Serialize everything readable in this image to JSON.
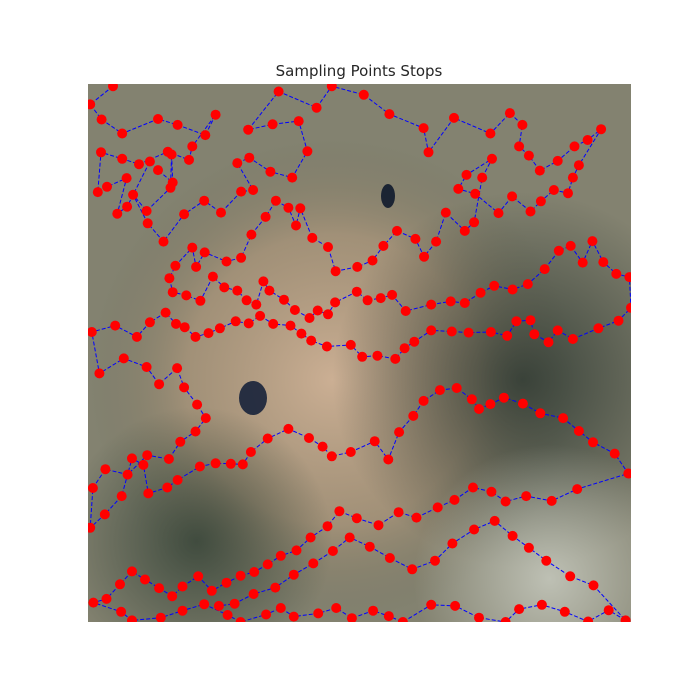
{
  "chart_data": {
    "type": "scatter",
    "title": "Sampling Points Stops",
    "xlabel": "",
    "ylabel": "",
    "axes_visible": false,
    "background": "aerial photograph (satellite imagery of terrain)",
    "xlim": [
      0,
      100
    ],
    "ylim": [
      0,
      100
    ],
    "y_inverted": true,
    "grid": false,
    "legend": "none",
    "colors": {
      "point": "#ff0000",
      "path": "#0000ff",
      "title": "#262626"
    },
    "path_style": "dashed",
    "points": [
      [
        4.6,
        0.4
      ],
      [
        0.4,
        3.8
      ],
      [
        2.5,
        6.6
      ],
      [
        6.3,
        9.2
      ],
      [
        12.9,
        6.5
      ],
      [
        16.5,
        7.6
      ],
      [
        21.6,
        9.5
      ],
      [
        23.5,
        5.7
      ],
      [
        19.2,
        11.6
      ],
      [
        18.6,
        14.1
      ],
      [
        14.7,
        12.6
      ],
      [
        9.4,
        14.9
      ],
      [
        6.3,
        13.9
      ],
      [
        2.4,
        12.7
      ],
      [
        1.8,
        20.1
      ],
      [
        3.5,
        19.1
      ],
      [
        7.1,
        17.5
      ],
      [
        5.4,
        24.1
      ],
      [
        7.2,
        22.8
      ],
      [
        11.4,
        14.4
      ],
      [
        12.9,
        16.0
      ],
      [
        15.6,
        18.3
      ],
      [
        15.4,
        13.1
      ],
      [
        15.2,
        19.3
      ],
      [
        10.8,
        23.6
      ],
      [
        8.3,
        20.6
      ],
      [
        11.0,
        25.9
      ],
      [
        13.9,
        29.3
      ],
      [
        17.7,
        24.2
      ],
      [
        21.4,
        21.7
      ],
      [
        24.5,
        23.9
      ],
      [
        28.2,
        20.0
      ],
      [
        30.4,
        19.7
      ],
      [
        27.5,
        14.7
      ],
      [
        29.7,
        13.7
      ],
      [
        33.6,
        16.3
      ],
      [
        37.6,
        17.4
      ],
      [
        40.4,
        12.5
      ],
      [
        38.8,
        6.9
      ],
      [
        34.0,
        7.5
      ],
      [
        29.5,
        8.5
      ],
      [
        35.1,
        1.4
      ],
      [
        42.1,
        4.4
      ],
      [
        44.9,
        0.4
      ],
      [
        50.8,
        2.0
      ],
      [
        55.5,
        5.6
      ],
      [
        61.8,
        8.2
      ],
      [
        62.7,
        12.7
      ],
      [
        67.4,
        6.3
      ],
      [
        74.1,
        9.2
      ],
      [
        77.7,
        5.4
      ],
      [
        80.0,
        7.6
      ],
      [
        79.4,
        11.6
      ],
      [
        81.2,
        13.3
      ],
      [
        83.2,
        16.1
      ],
      [
        86.5,
        14.3
      ],
      [
        89.6,
        11.6
      ],
      [
        92.0,
        10.4
      ],
      [
        94.5,
        8.4
      ],
      [
        90.4,
        15.1
      ],
      [
        89.3,
        17.4
      ],
      [
        88.4,
        20.3
      ],
      [
        85.8,
        19.7
      ],
      [
        83.4,
        21.8
      ],
      [
        81.5,
        23.7
      ],
      [
        78.1,
        20.9
      ],
      [
        75.6,
        24.0
      ],
      [
        71.3,
        20.4
      ],
      [
        68.2,
        19.5
      ],
      [
        69.7,
        16.9
      ],
      [
        74.4,
        13.9
      ],
      [
        72.6,
        17.4
      ],
      [
        71.1,
        25.7
      ],
      [
        69.4,
        27.3
      ],
      [
        65.9,
        23.9
      ],
      [
        64.1,
        29.3
      ],
      [
        61.9,
        32.1
      ],
      [
        60.3,
        28.8
      ],
      [
        56.9,
        27.3
      ],
      [
        54.4,
        30.1
      ],
      [
        52.4,
        32.8
      ],
      [
        49.6,
        34.0
      ],
      [
        45.6,
        34.8
      ],
      [
        44.2,
        30.3
      ],
      [
        41.3,
        28.6
      ],
      [
        39.1,
        23.1
      ],
      [
        38.3,
        26.3
      ],
      [
        36.9,
        23.0
      ],
      [
        34.6,
        21.7
      ],
      [
        32.7,
        24.7
      ],
      [
        30.1,
        28.0
      ],
      [
        28.2,
        32.3
      ],
      [
        25.5,
        33.0
      ],
      [
        21.5,
        31.3
      ],
      [
        19.9,
        34.0
      ],
      [
        19.2,
        30.4
      ],
      [
        16.1,
        33.8
      ],
      [
        15.0,
        36.1
      ],
      [
        15.6,
        38.7
      ],
      [
        18.1,
        39.3
      ],
      [
        20.7,
        40.3
      ],
      [
        23.0,
        35.8
      ],
      [
        25.1,
        37.8
      ],
      [
        27.5,
        38.4
      ],
      [
        29.2,
        40.2
      ],
      [
        31.0,
        41.0
      ],
      [
        32.3,
        36.7
      ],
      [
        33.4,
        38.4
      ],
      [
        36.1,
        40.1
      ],
      [
        38.1,
        42.0
      ],
      [
        40.8,
        43.5
      ],
      [
        42.3,
        42.1
      ],
      [
        44.2,
        42.8
      ],
      [
        45.5,
        40.6
      ],
      [
        49.5,
        38.6
      ],
      [
        51.5,
        40.2
      ],
      [
        53.9,
        39.8
      ],
      [
        56.0,
        39.2
      ],
      [
        58.5,
        42.2
      ],
      [
        63.2,
        41.0
      ],
      [
        66.8,
        40.4
      ],
      [
        69.4,
        40.7
      ],
      [
        72.3,
        38.8
      ],
      [
        74.8,
        37.5
      ],
      [
        78.2,
        38.2
      ],
      [
        81.0,
        37.2
      ],
      [
        84.1,
        34.4
      ],
      [
        86.7,
        31.0
      ],
      [
        88.9,
        30.1
      ],
      [
        91.1,
        33.2
      ],
      [
        92.9,
        29.2
      ],
      [
        94.9,
        33.1
      ],
      [
        97.3,
        35.3
      ],
      [
        99.7,
        35.9
      ],
      [
        100.0,
        41.6
      ],
      [
        97.7,
        44.0
      ],
      [
        94.0,
        45.4
      ],
      [
        89.3,
        47.4
      ],
      [
        86.5,
        45.8
      ],
      [
        84.8,
        48.0
      ],
      [
        82.2,
        46.5
      ],
      [
        81.5,
        43.9
      ],
      [
        78.9,
        44.1
      ],
      [
        77.2,
        46.8
      ],
      [
        74.2,
        46.1
      ],
      [
        70.1,
        46.2
      ],
      [
        67.0,
        46.0
      ],
      [
        63.2,
        45.8
      ],
      [
        60.1,
        47.9
      ],
      [
        58.3,
        49.1
      ],
      [
        56.6,
        51.1
      ],
      [
        53.3,
        50.5
      ],
      [
        50.5,
        50.7
      ],
      [
        48.4,
        48.5
      ],
      [
        44.0,
        48.8
      ],
      [
        41.1,
        47.7
      ],
      [
        39.3,
        46.4
      ],
      [
        37.3,
        44.9
      ],
      [
        34.1,
        44.6
      ],
      [
        31.7,
        43.1
      ],
      [
        29.6,
        44.5
      ],
      [
        27.2,
        44.1
      ],
      [
        24.3,
        45.4
      ],
      [
        22.2,
        46.3
      ],
      [
        19.8,
        47.0
      ],
      [
        17.8,
        45.2
      ],
      [
        16.2,
        44.6
      ],
      [
        14.3,
        42.5
      ],
      [
        11.4,
        44.3
      ],
      [
        9.0,
        47.0
      ],
      [
        5.0,
        44.9
      ],
      [
        0.7,
        46.1
      ],
      [
        2.1,
        53.8
      ],
      [
        6.6,
        51.0
      ],
      [
        10.8,
        52.6
      ],
      [
        13.1,
        55.8
      ],
      [
        16.4,
        52.8
      ],
      [
        17.7,
        56.4
      ],
      [
        20.1,
        59.6
      ],
      [
        21.7,
        62.1
      ],
      [
        19.8,
        64.6
      ],
      [
        17.0,
        66.5
      ],
      [
        14.9,
        69.7
      ],
      [
        10.9,
        69.0
      ],
      [
        7.3,
        72.6
      ],
      [
        3.2,
        71.6
      ],
      [
        0.9,
        75.1
      ],
      [
        0.4,
        82.5
      ],
      [
        3.1,
        80.0
      ],
      [
        6.2,
        76.6
      ],
      [
        8.1,
        69.6
      ],
      [
        10.2,
        70.8
      ],
      [
        11.1,
        76.1
      ],
      [
        14.6,
        75.0
      ],
      [
        16.5,
        73.6
      ],
      [
        20.6,
        71.1
      ],
      [
        23.5,
        70.5
      ],
      [
        26.3,
        70.6
      ],
      [
        28.5,
        70.7
      ],
      [
        30.0,
        68.4
      ],
      [
        33.1,
        65.9
      ],
      [
        36.9,
        64.1
      ],
      [
        40.7,
        65.8
      ],
      [
        43.2,
        67.4
      ],
      [
        44.9,
        69.2
      ],
      [
        48.4,
        68.4
      ],
      [
        52.8,
        66.4
      ],
      [
        55.3,
        69.8
      ],
      [
        57.3,
        64.7
      ],
      [
        59.9,
        61.7
      ],
      [
        61.8,
        58.9
      ],
      [
        64.8,
        56.9
      ],
      [
        67.9,
        56.5
      ],
      [
        70.7,
        58.6
      ],
      [
        72.0,
        60.4
      ],
      [
        74.1,
        59.5
      ],
      [
        76.6,
        58.3
      ],
      [
        80.1,
        59.4
      ],
      [
        83.3,
        61.2
      ],
      [
        87.5,
        62.1
      ],
      [
        90.4,
        64.5
      ],
      [
        93.0,
        66.6
      ],
      [
        97.0,
        68.7
      ],
      [
        99.5,
        72.4
      ],
      [
        90.1,
        75.3
      ],
      [
        85.4,
        77.5
      ],
      [
        80.7,
        76.6
      ],
      [
        76.9,
        77.6
      ],
      [
        74.3,
        75.8
      ],
      [
        70.9,
        75.0
      ],
      [
        67.5,
        77.3
      ],
      [
        64.4,
        78.7
      ],
      [
        60.5,
        80.6
      ],
      [
        57.2,
        79.6
      ],
      [
        53.5,
        82.0
      ],
      [
        49.5,
        80.7
      ],
      [
        46.3,
        79.4
      ],
      [
        44.1,
        82.2
      ],
      [
        41.0,
        84.3
      ],
      [
        38.4,
        86.7
      ],
      [
        35.5,
        87.7
      ],
      [
        33.1,
        89.3
      ],
      [
        30.6,
        90.7
      ],
      [
        28.1,
        91.4
      ],
      [
        25.5,
        92.7
      ],
      [
        22.8,
        94.2
      ],
      [
        20.3,
        91.5
      ],
      [
        17.4,
        93.4
      ],
      [
        15.5,
        95.2
      ],
      [
        13.1,
        93.7
      ],
      [
        10.5,
        92.1
      ],
      [
        8.1,
        90.6
      ],
      [
        5.9,
        93.0
      ],
      [
        3.4,
        95.7
      ],
      [
        1.0,
        96.4
      ],
      [
        6.1,
        98.1
      ],
      [
        8.1,
        99.7
      ],
      [
        13.4,
        99.2
      ],
      [
        17.4,
        97.9
      ],
      [
        21.4,
        96.7
      ],
      [
        25.7,
        98.7
      ],
      [
        28.1,
        100.0
      ],
      [
        32.8,
        98.6
      ],
      [
        35.5,
        97.4
      ],
      [
        37.9,
        99.0
      ],
      [
        42.4,
        98.4
      ],
      [
        45.7,
        97.4
      ],
      [
        48.6,
        99.3
      ],
      [
        52.5,
        97.9
      ],
      [
        55.4,
        98.9
      ],
      [
        58.0,
        100.0
      ],
      [
        63.2,
        96.8
      ],
      [
        67.6,
        97.0
      ],
      [
        72.0,
        99.2
      ],
      [
        76.9,
        100.0
      ],
      [
        79.4,
        97.6
      ],
      [
        83.6,
        96.8
      ],
      [
        87.8,
        98.1
      ],
      [
        92.1,
        99.9
      ],
      [
        95.9,
        97.8
      ],
      [
        99.0,
        99.7
      ],
      [
        93.1,
        93.2
      ],
      [
        88.8,
        91.5
      ],
      [
        84.4,
        88.6
      ],
      [
        81.2,
        86.2
      ],
      [
        78.2,
        84.0
      ],
      [
        74.9,
        81.2
      ],
      [
        71.1,
        82.8
      ],
      [
        67.1,
        85.4
      ],
      [
        63.9,
        88.6
      ],
      [
        59.7,
        90.2
      ],
      [
        55.6,
        88.1
      ],
      [
        51.9,
        86.0
      ],
      [
        48.2,
        84.3
      ],
      [
        45.1,
        86.8
      ],
      [
        41.5,
        89.1
      ],
      [
        37.9,
        91.2
      ],
      [
        34.5,
        93.6
      ],
      [
        30.5,
        94.8
      ],
      [
        27.0,
        96.6
      ],
      [
        24.1,
        97.0
      ]
    ]
  }
}
